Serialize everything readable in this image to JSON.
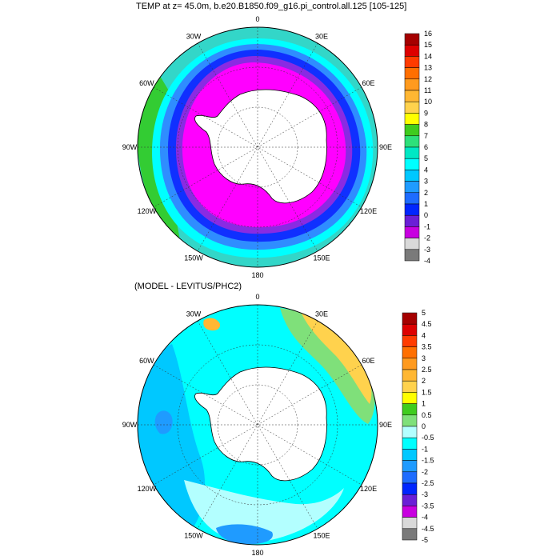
{
  "top_panel": {
    "title": "TEMP at z=  45.0m, b.e20.B1850.f09_g16.pi_control.all.125 [105-125]",
    "colorbar": {
      "labels": [
        "16",
        "15",
        "14",
        "13",
        "12",
        "11",
        "10",
        "9",
        "8",
        "7",
        "6",
        "5",
        "4",
        "3",
        "2",
        "1",
        "0",
        "-1",
        "-2",
        "-3",
        "-4"
      ],
      "colors": [
        "#a50000",
        "#dd0000",
        "#ff3b00",
        "#ff6f00",
        "#ff9a1e",
        "#ffb733",
        "#ffd24d",
        "#ffff00",
        "#3fcc1e",
        "#2ee07a",
        "#00e8c4",
        "#00ffff",
        "#00c8ff",
        "#1f9bff",
        "#1e6cff",
        "#0026ff",
        "#6a1fd6",
        "#c800e0",
        "#d9d9d9",
        "#7a7a7a"
      ]
    },
    "ring_colors": {
      "ice": "#ff00ff",
      "purple": "#8a2be2",
      "blue": "#1030ff",
      "light_blue": "#2f8dff",
      "cyan": "#00ffff",
      "teal": "#33d6c8",
      "green": "#33cc33",
      "pale": "#b3ffff",
      "land": "#ffffff"
    }
  },
  "bottom_panel": {
    "title": "(MODEL - LEVITUS/PHC2)",
    "colorbar": {
      "labels": [
        "5",
        "4.5",
        "4",
        "3.5",
        "3",
        "2.5",
        "2",
        "1.5",
        "1",
        "0.5",
        "0",
        "-0.5",
        "-1",
        "-1.5",
        "-2",
        "-2.5",
        "-3",
        "-3.5",
        "-4",
        "-4.5",
        "-5"
      ],
      "colors": [
        "#a50000",
        "#dd0000",
        "#ff3b00",
        "#ff6f00",
        "#ff9a1e",
        "#ffb733",
        "#ffd24d",
        "#ffff00",
        "#3fcc1e",
        "#7fe07a",
        "#b3ffff",
        "#00ffff",
        "#00c8ff",
        "#1f9bff",
        "#1e6cff",
        "#0026ff",
        "#6a1fd6",
        "#c800e0",
        "#d9d9d9",
        "#7a7a7a"
      ]
    },
    "field_colors": {
      "base": "#00ffff",
      "pale": "#b3ffff",
      "light_blue": "#00c8ff",
      "mid_blue": "#1f9bff",
      "green": "#7fe07a",
      "yellow": "#ffd24d",
      "orange": "#ffb733",
      "land": "#ffffff"
    }
  },
  "longitude_labels": [
    "0",
    "30E",
    "60E",
    "90E",
    "120E",
    "150E",
    "180",
    "150W",
    "120W",
    "90W",
    "60W",
    "30W"
  ]
}
